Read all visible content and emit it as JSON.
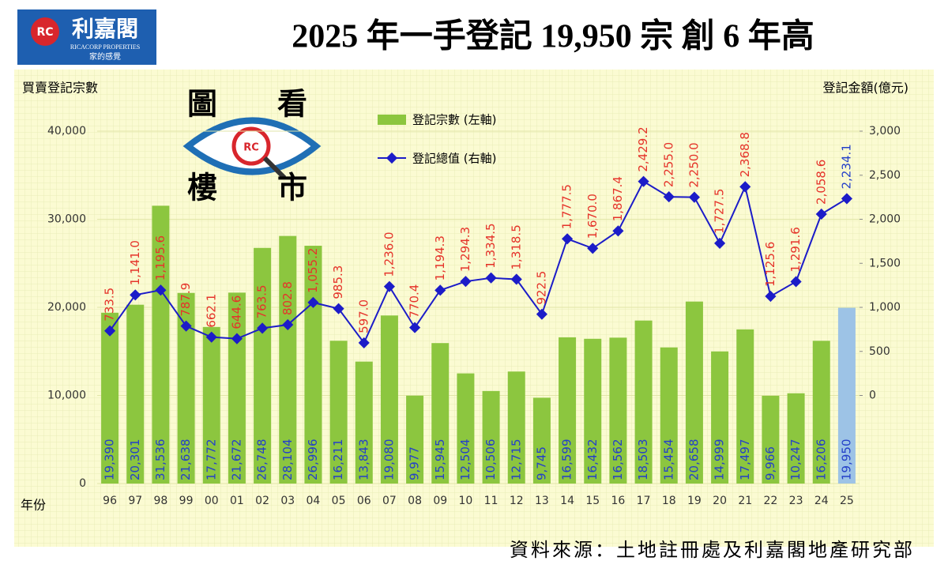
{
  "header": {
    "logo_name": "利嘉閣",
    "logo_english": "RICACORP PROPERTIES",
    "logo_slogan": "家的感覺",
    "logo_mark": "RC",
    "badge_chars": [
      "圖",
      "看",
      "樓",
      "市"
    ],
    "badge_mark": "RC"
  },
  "chart_data": {
    "type": "bar",
    "title": "2025 年一手登記 19,950 宗  創 6 年高",
    "ylabel": "買賣登記宗數",
    "y2label": "登記金額(億元)",
    "xlabel": "年份",
    "source": "資料來源：土地註冊處及利嘉閣地產研究部",
    "categories": [
      "96",
      "97",
      "98",
      "99",
      "00",
      "01",
      "02",
      "03",
      "04",
      "05",
      "06",
      "07",
      "08",
      "09",
      "10",
      "11",
      "12",
      "13",
      "14",
      "15",
      "16",
      "17",
      "18",
      "19",
      "20",
      "21",
      "22",
      "23",
      "24",
      "25"
    ],
    "series": [
      {
        "name": "登記宗數 (左軸)",
        "type": "bar",
        "color": "#8cc63f",
        "label_color": "#2440c8",
        "colors": [
          "#8cc63f",
          "#8cc63f",
          "#8cc63f",
          "#8cc63f",
          "#8cc63f",
          "#8cc63f",
          "#8cc63f",
          "#8cc63f",
          "#8cc63f",
          "#8cc63f",
          "#8cc63f",
          "#8cc63f",
          "#8cc63f",
          "#8cc63f",
          "#8cc63f",
          "#8cc63f",
          "#8cc63f",
          "#8cc63f",
          "#8cc63f",
          "#8cc63f",
          "#8cc63f",
          "#8cc63f",
          "#8cc63f",
          "#8cc63f",
          "#8cc63f",
          "#8cc63f",
          "#8cc63f",
          "#8cc63f",
          "#8cc63f",
          "#9dc3e6"
        ],
        "values": [
          19390,
          20301,
          31536,
          21638,
          17772,
          21672,
          26748,
          28104,
          26996,
          16211,
          13843,
          19080,
          9977,
          15945,
          12504,
          10506,
          12715,
          9745,
          16599,
          16432,
          16562,
          18503,
          15454,
          20658,
          14999,
          17497,
          9966,
          10247,
          16206,
          19950
        ],
        "value_labels": [
          "19,390",
          "20,301",
          "31,536",
          "21,638",
          "17,772",
          "21,672",
          "26,748",
          "28,104",
          "26,996",
          "16,211",
          "13,843",
          "19,080",
          "9,977",
          "15,945",
          "12,504",
          "10,506",
          "12,715",
          "9,745",
          "16,599",
          "16,432",
          "16,562",
          "18,503",
          "15,454",
          "20,658",
          "14,999",
          "17,497",
          "9,966",
          "10,247",
          "16,206",
          "19,950"
        ]
      },
      {
        "name": "登記總值 (右軸)",
        "type": "line",
        "axis": "y2",
        "color": "#1c1cc8",
        "label_colors": [
          "#e5332a",
          "#e5332a",
          "#e5332a",
          "#e5332a",
          "#e5332a",
          "#e5332a",
          "#e5332a",
          "#e5332a",
          "#e5332a",
          "#e5332a",
          "#e5332a",
          "#e5332a",
          "#e5332a",
          "#e5332a",
          "#e5332a",
          "#e5332a",
          "#e5332a",
          "#e5332a",
          "#e5332a",
          "#e5332a",
          "#e5332a",
          "#e5332a",
          "#e5332a",
          "#e5332a",
          "#e5332a",
          "#e5332a",
          "#e5332a",
          "#e5332a",
          "#e5332a",
          "#2440c8"
        ],
        "values": [
          733.5,
          1141.0,
          1195.6,
          787.9,
          662.1,
          644.6,
          763.5,
          802.8,
          1055.2,
          985.3,
          597.0,
          1236.0,
          770.4,
          1194.3,
          1294.3,
          1334.5,
          1318.5,
          922.5,
          1777.5,
          1670.0,
          1867.4,
          2429.2,
          2255.0,
          2250.0,
          1727.5,
          2368.8,
          1125.6,
          1291.6,
          2058.6,
          2234.1
        ],
        "value_labels": [
          "733.5",
          "1,141.0",
          "1,195.6",
          "787.9",
          "662.1",
          "644.6",
          "763.5",
          "802.8",
          "1,055.2",
          "985.3",
          "597.0",
          "1,236.0",
          "770.4",
          "1,194.3",
          "1,294.3",
          "1,334.5",
          "1,318.5",
          "922.5",
          "1,777.5",
          "1,670.0",
          "1,867.4",
          "2,429.2",
          "2,255.0",
          "2,250.0",
          "1,727.5",
          "2,368.8",
          "1,125.6",
          "1,291.6",
          "2,058.6",
          "2,234.1"
        ]
      }
    ],
    "ylim": [
      0,
      40000
    ],
    "yticks": [
      0,
      {
        "value": 10000,
        "label": "10,000"
      },
      {
        "value": 20000,
        "label": "20,000"
      },
      {
        "value": 30000,
        "label": "30,000"
      },
      {
        "value": 40000,
        "label": "40,000"
      }
    ],
    "y2lim": [
      -1000,
      3000
    ],
    "y2ticks": [
      0,
      500,
      {
        "value": 1000,
        "label": "1,000"
      },
      {
        "value": 1500,
        "label": "1,500"
      },
      {
        "value": 2000,
        "label": "2,000"
      },
      {
        "value": 2500,
        "label": "2,500"
      },
      {
        "value": 3000,
        "label": "3,000"
      }
    ]
  }
}
